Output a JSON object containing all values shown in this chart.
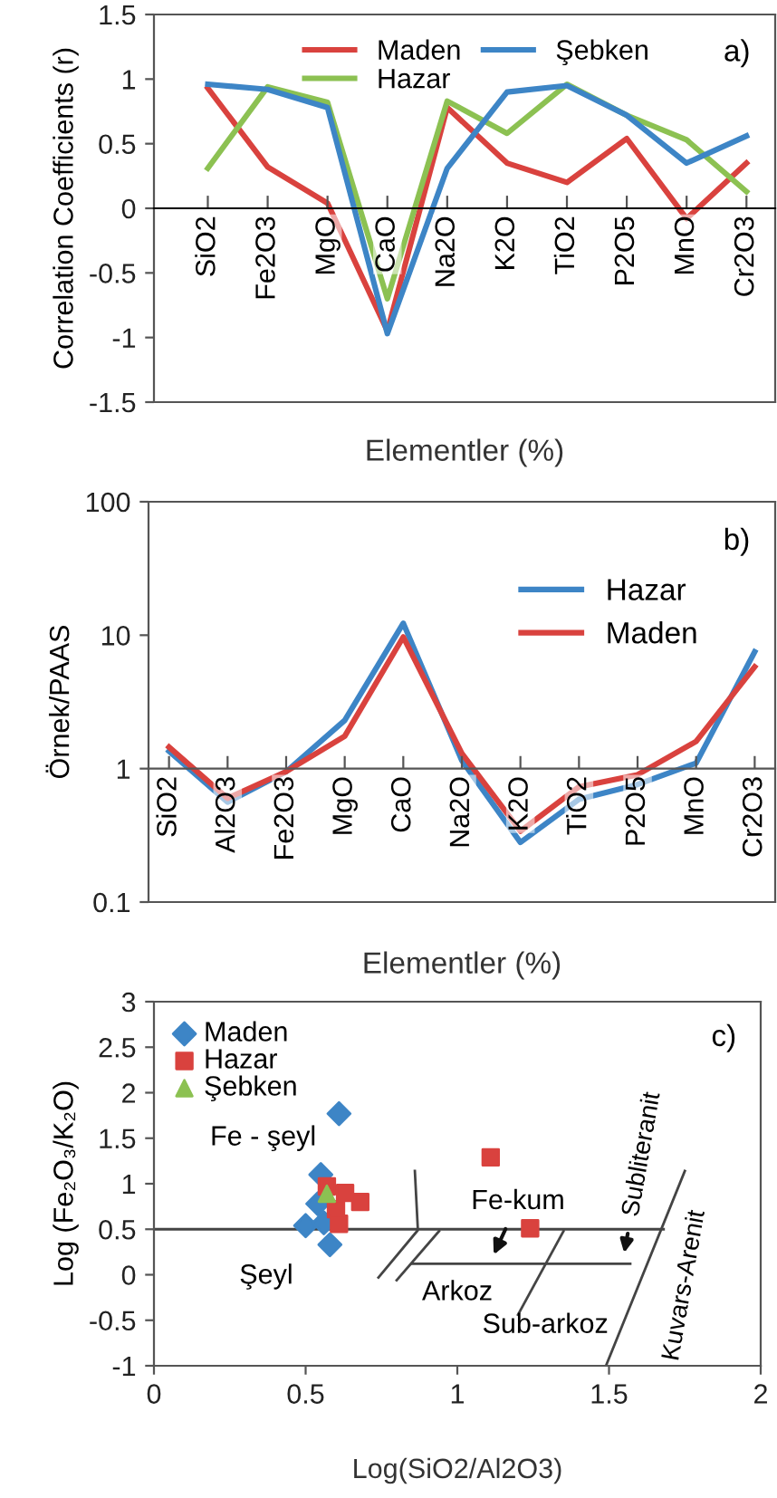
{
  "chart_data": [
    {
      "type": "line",
      "ylabel": "Correlation Coefficients (r)",
      "xlabel": "Elementler (%)",
      "categories": [
        "SiO2",
        "Fe2O3",
        "MgO",
        "CaO",
        "Na2O",
        "K2O",
        "TiO2",
        "P2O5",
        "MnO",
        "Cr2O3"
      ],
      "series": [
        {
          "name": "Maden",
          "color": "#d9423e",
          "values": [
            0.93,
            0.32,
            0.04,
            -0.95,
            0.78,
            0.35,
            0.2,
            0.54,
            -0.08,
            0.35
          ]
        },
        {
          "name": "Hazar",
          "color": "#8cc152",
          "values": [
            0.31,
            0.94,
            0.82,
            -0.7,
            0.83,
            0.58,
            0.96,
            0.72,
            0.53,
            0.13
          ]
        },
        {
          "name": "Şebken",
          "color": "#3d85c6",
          "values": [
            0.96,
            0.92,
            0.78,
            -0.97,
            0.31,
            0.9,
            0.95,
            0.72,
            0.35,
            0.56
          ]
        }
      ],
      "ylim": [
        -1.5,
        1.5
      ],
      "yticks": [
        -1.5,
        -1,
        -0.5,
        0,
        0.5,
        1,
        1.5
      ],
      "legend": "top",
      "grid": false,
      "marker": "none",
      "annotations": [
        "a)"
      ]
    },
    {
      "type": "line",
      "ylabel": "Örnek/PAAS",
      "xlabel": "Elementler (%)",
      "log": "y",
      "categories": [
        "SiO2",
        "Al2O3",
        "Fe2O3",
        "MgO",
        "CaO",
        "Na2O",
        "K2O",
        "TiO2",
        "P2O5",
        "MnO",
        "Cr2O3"
      ],
      "series": [
        {
          "name": "Hazar",
          "color": "#3d85c6",
          "values": [
            1.35,
            0.56,
            0.95,
            2.3,
            12.3,
            1.15,
            0.28,
            0.59,
            0.76,
            1.1,
            7.5
          ]
        },
        {
          "name": "Maden",
          "color": "#d9423e",
          "values": [
            1.45,
            0.6,
            0.95,
            1.75,
            9.7,
            1.3,
            0.34,
            0.73,
            0.9,
            1.6,
            5.8
          ]
        }
      ],
      "ylim": [
        0.1,
        100
      ],
      "yticks": [
        0.1,
        1,
        10,
        100
      ],
      "legend": "right",
      "grid": false,
      "marker": "none",
      "annotations": [
        "b)"
      ]
    },
    {
      "type": "scatter",
      "xlabel": "Log(SiO2/Al2O3)",
      "ylabel": "Log (Fe₂O₃/K₂O)",
      "series": [
        {
          "name": "Maden",
          "color": "#3d85c6",
          "marker": "diamond",
          "x": [
            0.61,
            0.55,
            0.54,
            0.5,
            0.56,
            0.58
          ],
          "values": [
            1.77,
            1.1,
            0.78,
            0.54,
            0.57,
            0.33
          ]
        },
        {
          "name": "Hazar",
          "color": "#d9423e",
          "marker": "square",
          "x": [
            1.11,
            1.24,
            0.57,
            0.63,
            0.68,
            0.6,
            0.61
          ],
          "values": [
            1.29,
            0.51,
            0.97,
            0.9,
            0.8,
            0.72,
            0.56
          ]
        },
        {
          "name": "Şebken",
          "color": "#8cc152",
          "marker": "triangle",
          "x": [
            0.57
          ],
          "values": [
            0.89
          ]
        },
        {
          "type": "line",
          "color": "#444444",
          "x": [
            0,
            1.68
          ],
          "values": [
            0.5,
            0.5
          ]
        },
        {
          "type": "line",
          "color": "#444444",
          "x": [
            0.86,
            0.87,
            0.74
          ],
          "values": [
            1.14,
            0.49,
            -0.03
          ]
        },
        {
          "type": "line",
          "color": "#444444",
          "x": [
            0.94,
            0.8
          ],
          "values": [
            0.48,
            -0.06
          ]
        },
        {
          "type": "line",
          "color": "#444444",
          "x": [
            0.85,
            1.57
          ],
          "values": [
            0.12,
            0.12
          ]
        },
        {
          "type": "line",
          "color": "#444444",
          "x": [
            1.35,
            1.2
          ],
          "values": [
            0.48,
            -0.44
          ]
        },
        {
          "type": "line",
          "color": "#444444",
          "x": [
            1.75,
            1.49
          ],
          "values": [
            1.14,
            -1
          ]
        }
      ],
      "xlim": [
        0,
        2
      ],
      "xticks": [
        0,
        0.5,
        1,
        1.5,
        2
      ],
      "ylim": [
        -1,
        3
      ],
      "yticks": [
        -1,
        -0.5,
        0,
        0.5,
        1,
        1.5,
        2,
        2.5,
        3
      ],
      "legend": "top left",
      "grid": false,
      "annotations": [
        "c)",
        "Fe - şeyl",
        "Şeyl",
        "Fe-kum",
        "Arkoz",
        "Sub-arkoz",
        "Subliteranit",
        "Kuvars-Arenit"
      ]
    }
  ]
}
